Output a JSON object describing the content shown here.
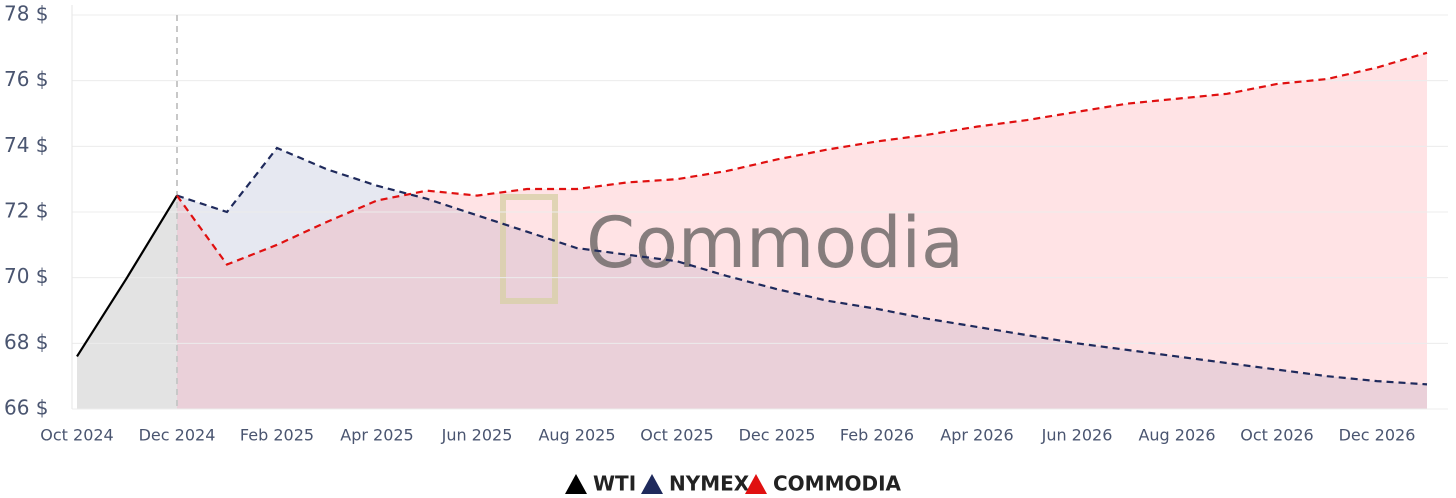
{
  "chart_data": {
    "type": "line",
    "watermark": "Commodia",
    "categories": [
      "Oct 2024",
      null,
      "Dec 2024",
      null,
      "Feb 2025",
      null,
      "Apr 2025",
      null,
      "Jun 2025",
      null,
      "Aug 2025",
      null,
      "Oct 2025",
      null,
      "Dec 2025",
      null,
      "Feb 2026",
      null,
      "Apr 2026",
      null,
      "Jun 2026",
      null,
      "Aug 2026",
      null,
      "Oct 2026",
      null,
      "Dec 2026",
      null
    ],
    "series": [
      {
        "name": "WTI",
        "color": "#000000",
        "dashed": false,
        "fill": "rgba(0,0,0,0.11)",
        "values": [
          67.6,
          70.0,
          72.5,
          null,
          null,
          null,
          null,
          null,
          null,
          null,
          null,
          null,
          null,
          null,
          null,
          null,
          null,
          null,
          null,
          null,
          null,
          null,
          null,
          null,
          null,
          null,
          null,
          null
        ]
      },
      {
        "name": "NYMEX",
        "color": "#1f2a5c",
        "dashed": true,
        "fill": "rgba(60,80,150,0.13)",
        "values": [
          null,
          null,
          72.5,
          72.0,
          73.95,
          73.3,
          72.8,
          72.4,
          71.9,
          71.4,
          70.9,
          70.7,
          70.5,
          70.05,
          69.65,
          69.3,
          69.05,
          68.75,
          68.5,
          68.25,
          68.0,
          67.8,
          67.6,
          67.4,
          67.2,
          67.0,
          66.85,
          66.75
        ]
      },
      {
        "name": "COMMODIA",
        "color": "#e01010",
        "dashed": true,
        "fill": "rgba(255,90,100,0.17)",
        "values": [
          null,
          null,
          72.5,
          70.4,
          71.0,
          71.7,
          72.35,
          72.65,
          72.5,
          72.7,
          72.7,
          72.9,
          73.0,
          73.25,
          73.6,
          73.9,
          74.15,
          74.35,
          74.6,
          74.8,
          75.05,
          75.3,
          75.45,
          75.6,
          75.9,
          76.05,
          76.4,
          76.85
        ]
      }
    ],
    "ylim": [
      66,
      78
    ],
    "yticks": [
      {
        "value": 66,
        "label": "66 $"
      },
      {
        "value": 68,
        "label": "68 $"
      },
      {
        "value": 70,
        "label": "70 $"
      },
      {
        "value": 72,
        "label": "72 $"
      },
      {
        "value": 74,
        "label": "74 $"
      },
      {
        "value": 76,
        "label": "76 $"
      },
      {
        "value": 78,
        "label": "78 $"
      }
    ],
    "grid": true,
    "legend": "bottom"
  }
}
